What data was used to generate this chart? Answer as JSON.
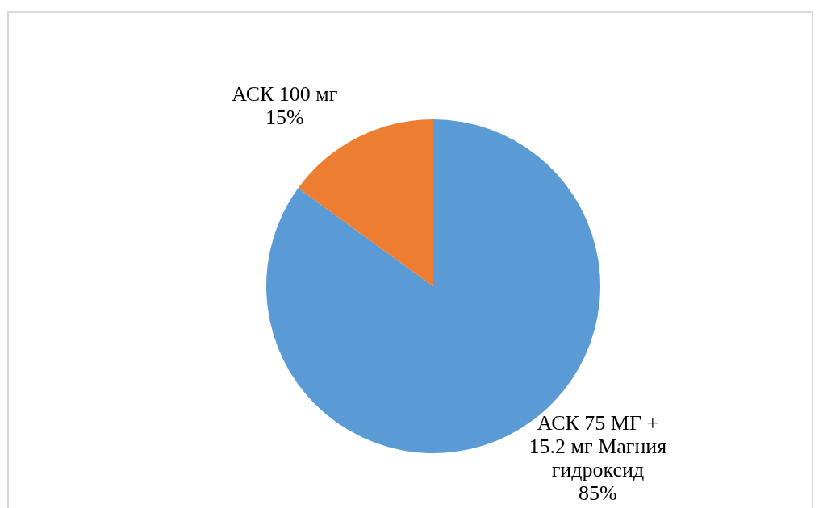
{
  "chart_data": {
    "type": "pie",
    "categories": [
      "АСК 75 МГ + 15.2 мг Магния гидроксид",
      "АСК 100 мг"
    ],
    "values": [
      85,
      15
    ],
    "colors": [
      "#5b9bd5",
      "#ed7d31"
    ],
    "value_labels": [
      "85%",
      "15%"
    ]
  }
}
